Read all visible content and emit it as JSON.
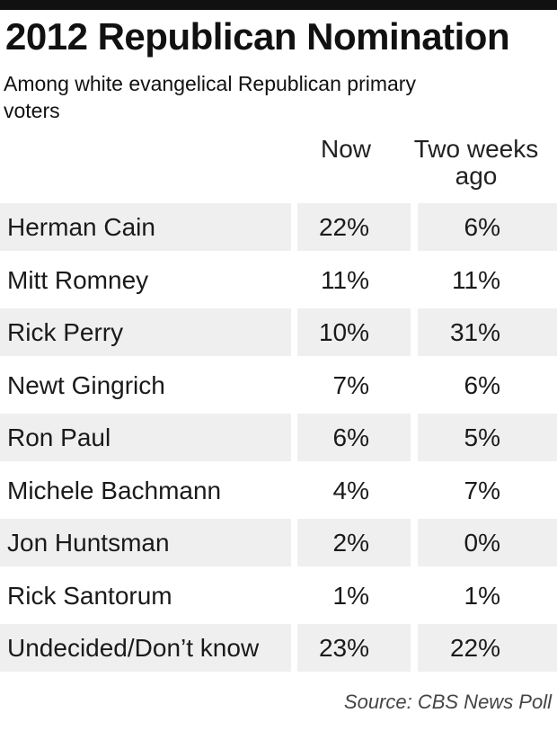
{
  "header": {
    "title": "2012 Republican Nomination",
    "subtitle": "Among white evangelical Republican primary voters"
  },
  "columns": {
    "now": "Now",
    "previous": "Two weeks ago"
  },
  "source": "Source: CBS News Poll",
  "chart_data": {
    "type": "table",
    "title": "2012 Republican Nomination",
    "subtitle": "Among white evangelical Republican primary voters",
    "columns": [
      "Now",
      "Two weeks ago"
    ],
    "rows": [
      {
        "label": "Herman Cain",
        "now": "22%",
        "prev": "6%"
      },
      {
        "label": "Mitt Romney",
        "now": "11%",
        "prev": "11%"
      },
      {
        "label": "Rick Perry",
        "now": "10%",
        "prev": "31%"
      },
      {
        "label": "Newt Gingrich",
        "now": "7%",
        "prev": "6%"
      },
      {
        "label": "Ron Paul",
        "now": "6%",
        "prev": "5%"
      },
      {
        "label": "Michele Bachmann",
        "now": "4%",
        "prev": "7%"
      },
      {
        "label": "Jon Huntsman",
        "now": "2%",
        "prev": "0%"
      },
      {
        "label": "Rick Santorum",
        "now": "1%",
        "prev": "1%"
      },
      {
        "label": "Undecided/Don’t know",
        "now": "23%",
        "prev": "22%"
      }
    ],
    "source": "Source: CBS News Poll"
  }
}
